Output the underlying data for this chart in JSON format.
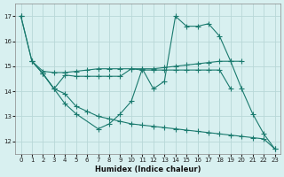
{
  "xlabel": "Humidex (Indice chaleur)",
  "background_color": "#d8f0f0",
  "line_color": "#1a7a6e",
  "grid_color": "#b8d8d8",
  "xlim": [
    -0.5,
    23.5
  ],
  "ylim": [
    11.5,
    17.5
  ],
  "xticks": [
    0,
    1,
    2,
    3,
    4,
    5,
    6,
    7,
    8,
    9,
    10,
    11,
    12,
    13,
    14,
    15,
    16,
    17,
    18,
    19,
    20,
    21,
    22,
    23
  ],
  "yticks": [
    12,
    13,
    14,
    15,
    16,
    17
  ],
  "series": [
    {
      "x": [
        0,
        1,
        2,
        3,
        4,
        5,
        6,
        7,
        8,
        9,
        10,
        11,
        12,
        13,
        14,
        15,
        16,
        17,
        18,
        19,
        20
      ],
      "y": [
        17,
        15.2,
        14.8,
        14.75,
        14.75,
        14.8,
        14.85,
        14.9,
        14.9,
        14.9,
        14.9,
        14.9,
        14.9,
        14.95,
        15.0,
        15.05,
        15.1,
        15.15,
        15.2,
        15.2,
        15.2
      ]
    },
    {
      "comment": "Line B: from (1,15.2) dips to (2,14.7),(3,14.1),(4,14.7),(5,14.6) continues flat, then (10,14.9),(11,14.85),(12,14.85),(13,14.85),(14,14.85),(15,14.85),(16,14.85),(17,14.85),(18,14.85),(19,14.1)",
      "x": [
        1,
        2,
        3,
        4,
        5,
        6,
        7,
        8,
        9,
        10,
        11,
        12,
        13,
        14,
        15,
        16,
        17,
        18,
        19
      ],
      "y": [
        15.2,
        14.7,
        14.1,
        14.65,
        14.6,
        14.6,
        14.6,
        14.6,
        14.6,
        14.9,
        14.85,
        14.85,
        14.85,
        14.85,
        14.85,
        14.85,
        14.85,
        14.85,
        14.1
      ]
    },
    {
      "comment": "Line C: wiggly line from (2,14.7),(3,14.1),(4,13.5),(5,13.1),(7,12.5),(8,12.7),(9,13.1),(10,13.6),(11,14.9),(12,14.1),(13,14.4),(14,17.0),(15,16.6),(16,16.6),(17,16.7),(18,16.2),(19,15.2),(20,14.1),(21,13.1),(22,12.3),(23,11.7)",
      "x": [
        2,
        3,
        4,
        5,
        7,
        8,
        9,
        10,
        11,
        12,
        13,
        14,
        15,
        16,
        17,
        18,
        19,
        20,
        21,
        22,
        23
      ],
      "y": [
        14.7,
        14.1,
        13.5,
        13.1,
        12.5,
        12.7,
        13.1,
        13.6,
        14.9,
        14.1,
        14.4,
        17.0,
        16.6,
        16.6,
        16.7,
        16.2,
        15.2,
        14.1,
        13.1,
        12.3,
        11.7
      ]
    },
    {
      "x": [
        0,
        1,
        2,
        3,
        4,
        5,
        6,
        7,
        8,
        9,
        10,
        11,
        12,
        13,
        14,
        15,
        16,
        17,
        18,
        19,
        20,
        21,
        22,
        23
      ],
      "y": [
        17,
        15.2,
        14.7,
        14.1,
        13.9,
        13.4,
        13.2,
        13.0,
        12.9,
        12.8,
        12.7,
        12.65,
        12.6,
        12.55,
        12.5,
        12.45,
        12.4,
        12.35,
        12.3,
        12.25,
        12.2,
        12.15,
        12.1,
        11.7
      ]
    }
  ]
}
